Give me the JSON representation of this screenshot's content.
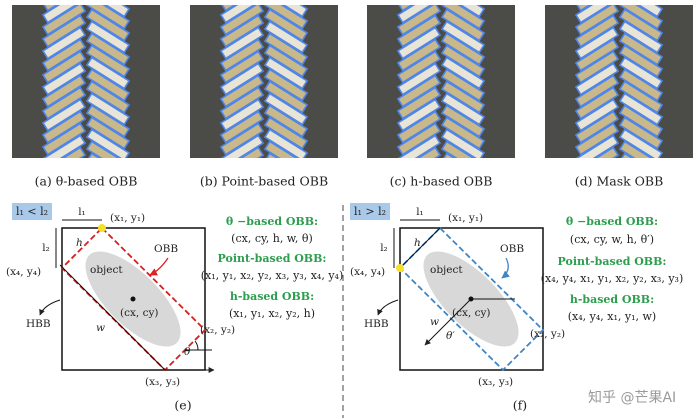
{
  "panels": [
    {
      "caption": "(a) θ-based OBB"
    },
    {
      "caption": "(b) Point-based OBB"
    },
    {
      "caption": "(c) h-based OBB"
    },
    {
      "caption": "(d) Mask OBB"
    }
  ],
  "diagrams": [
    {
      "condition": "l₁ < l₂",
      "l1": "l₁",
      "l2": "l₂",
      "h": "h",
      "w": "w",
      "p1": "(x₁, y₁)",
      "p2": "(x₂, y₂)",
      "p3": "(x₃, y₃)",
      "p4": "(x₄, y₄)",
      "object": "object",
      "center": "(cx, cy)",
      "obb": "OBB",
      "hbb": "HBB",
      "angle": "θ",
      "formats": [
        {
          "name": "θ −based OBB:",
          "tuple": "(cx, cy, h, w, θ)"
        },
        {
          "name": "Point-based OBB:",
          "tuple": "(x₁, y₁, x₂, y₂, x₃, y₃, x₄, y₄)"
        },
        {
          "name": "h-based OBB:",
          "tuple": "(x₁, y₁, x₂, y₂, h)"
        }
      ],
      "caption": "(e)"
    },
    {
      "condition": "l₁ > l₂",
      "l1": "l₁",
      "l2": "l₂",
      "h": "h",
      "w": "w",
      "p1": "(x₁, y₁)",
      "p2": "(x₂, y₂)",
      "p3": "(x₃, y₃)",
      "p4": "(x₄, y₄)",
      "object": "object",
      "center": "(cx, cy)",
      "obb": "OBB",
      "hbb": "HBB",
      "angle": "θ′",
      "formats": [
        {
          "name": "θ −based OBB:",
          "tuple": "(cx, cy, w, h, θ′)"
        },
        {
          "name": "Point-based OBB:",
          "tuple": "(x₄, y₄, x₁, y₁, x₂, y₂, x₃, y₃)"
        },
        {
          "name": "h-based OBB:",
          "tuple": "(x₄, y₄, x₁, y₁, w)"
        }
      ],
      "caption": "(f)"
    }
  ],
  "watermark": "知乎 @芒果AI"
}
